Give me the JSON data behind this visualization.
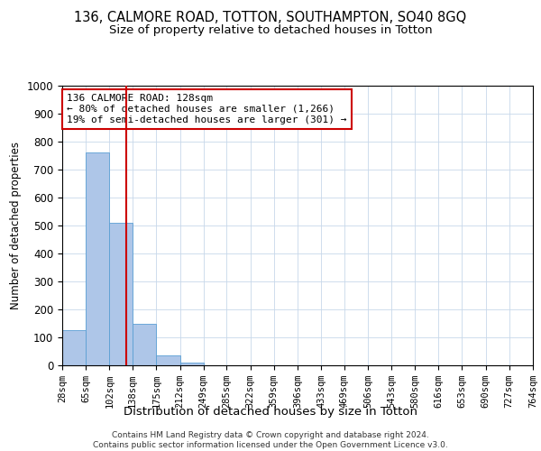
{
  "title_line1": "136, CALMORE ROAD, TOTTON, SOUTHAMPTON, SO40 8GQ",
  "title_line2": "Size of property relative to detached houses in Totton",
  "xlabel": "Distribution of detached houses by size in Totton",
  "ylabel": "Number of detached properties",
  "footer": "Contains HM Land Registry data © Crown copyright and database right 2024.\nContains public sector information licensed under the Open Government Licence v3.0.",
  "bin_edges": [
    28,
    65,
    102,
    138,
    175,
    212,
    249,
    285,
    322,
    359,
    396,
    433,
    469,
    506,
    543,
    580,
    616,
    653,
    690,
    727,
    764
  ],
  "bar_heights": [
    127,
    760,
    510,
    150,
    35,
    10,
    0,
    0,
    0,
    0,
    0,
    0,
    0,
    0,
    0,
    0,
    0,
    0,
    0,
    0
  ],
  "bar_color": "#aec6e8",
  "bar_edge_color": "#5a9fd4",
  "property_size": 128,
  "red_line_color": "#cc0000",
  "annotation_text": "136 CALMORE ROAD: 128sqm\n← 80% of detached houses are smaller (1,266)\n19% of semi-detached houses are larger (301) →",
  "annotation_box_color": "#ffffff",
  "annotation_box_edge_color": "#cc0000",
  "ylim": [
    0,
    1000
  ],
  "background_color": "#ffffff",
  "grid_color": "#c8d8ea",
  "tick_label_fontsize": 7.5,
  "title1_fontsize": 10.5,
  "title2_fontsize": 9.5,
  "ylabel_fontsize": 8.5,
  "xlabel_fontsize": 9.5,
  "annotation_fontsize": 8.0,
  "footer_fontsize": 6.5
}
